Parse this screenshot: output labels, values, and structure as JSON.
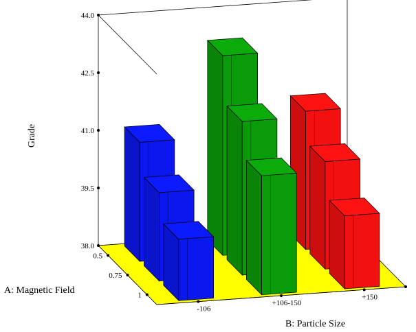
{
  "chart_data": {
    "type": "bar3d",
    "title": "",
    "zlabel": "Grade",
    "xlabel": "B: Particle Size",
    "ylabel": "A: Magnetic Field",
    "zlim": [
      38.0,
      44.0
    ],
    "z_ticks": [
      "38.0",
      "39.5",
      "41.0",
      "42.5",
      "44.0"
    ],
    "z_tick_values": [
      38.0,
      39.5,
      41.0,
      42.5,
      44.0
    ],
    "categories_b": [
      "-106",
      "+106-150",
      "+150"
    ],
    "categories_a": [
      "0.5",
      "0.75",
      "1"
    ],
    "series": [
      {
        "category_b": "-106",
        "values_a": [
          41.1,
          40.3,
          39.6
        ]
      },
      {
        "category_b": "+106-150",
        "values_a": [
          43.2,
          42.0,
          41.1
        ]
      },
      {
        "category_b": "+150",
        "values_a": [
          41.6,
          40.8,
          39.9
        ]
      }
    ],
    "colors": {
      "-106": "#0a18ef",
      "+106-150": "#0a9b0a",
      "+150": "#f21010",
      "floor": "#ffff00"
    },
    "grid": false,
    "legend": "none"
  }
}
